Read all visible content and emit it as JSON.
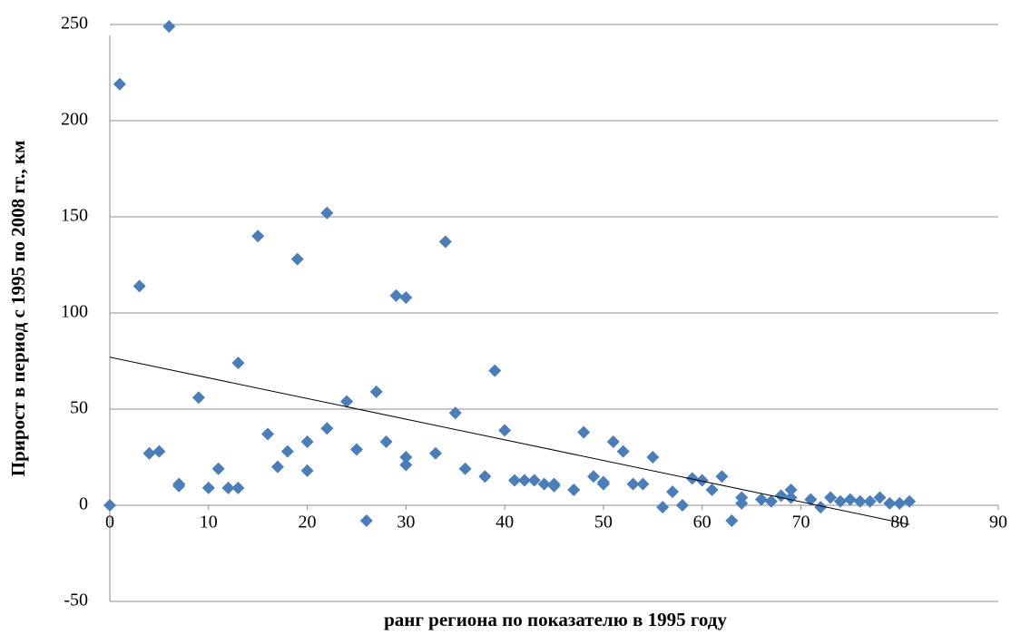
{
  "chart_data": {
    "type": "scatter",
    "x_label": "ранг региона по показателю в 1995 году",
    "y_label": "Прирост в период с 1995 по 2008 гг., км",
    "series": [
      {
        "color": "#4a7ebb",
        "x": [
          0,
          1,
          6,
          3,
          4,
          5,
          7,
          7,
          9,
          10,
          11,
          12,
          13,
          13,
          15,
          16,
          17,
          18,
          19,
          20,
          20,
          22,
          22,
          24,
          25,
          26,
          27,
          28,
          29,
          30,
          30,
          30,
          33,
          34,
          35,
          36,
          38,
          39,
          40,
          41,
          42,
          43,
          44,
          45,
          45,
          47,
          48,
          49,
          50,
          50,
          51,
          52,
          53,
          54,
          55,
          56,
          57,
          58,
          59,
          60,
          61,
          62,
          63,
          64,
          64,
          66,
          67,
          68,
          69,
          69,
          71,
          72,
          73,
          74,
          75,
          76,
          77,
          78,
          79,
          80,
          81
        ],
        "values": [
          0,
          219,
          249,
          114,
          27,
          28,
          11,
          10,
          56,
          9,
          19,
          9,
          9,
          74,
          140,
          37,
          20,
          28,
          128,
          33,
          18,
          152,
          40,
          54,
          29,
          -8,
          59,
          33,
          109,
          108,
          25,
          21,
          27,
          137,
          48,
          19,
          15,
          70,
          39,
          13,
          13,
          13,
          11,
          11,
          10,
          8,
          38,
          15,
          12,
          11,
          33,
          28,
          11,
          11,
          25,
          -1,
          7,
          0,
          14,
          13,
          8,
          15,
          -8,
          4,
          1,
          3,
          2,
          5,
          8,
          4,
          3,
          -1,
          4,
          2,
          3,
          2,
          2,
          4,
          1,
          1,
          2
        ]
      }
    ],
    "trendline": {
      "color": "#000000",
      "x": [
        0,
        81
      ],
      "y": [
        77,
        -10
      ]
    },
    "xlim": [
      0,
      90
    ],
    "xticks": [
      0,
      10,
      20,
      30,
      40,
      50,
      60,
      70,
      80,
      90
    ],
    "ylim": [
      -50,
      250
    ],
    "yticks": [
      -50,
      0,
      50,
      100,
      150,
      200,
      250
    ],
    "grid": true
  }
}
